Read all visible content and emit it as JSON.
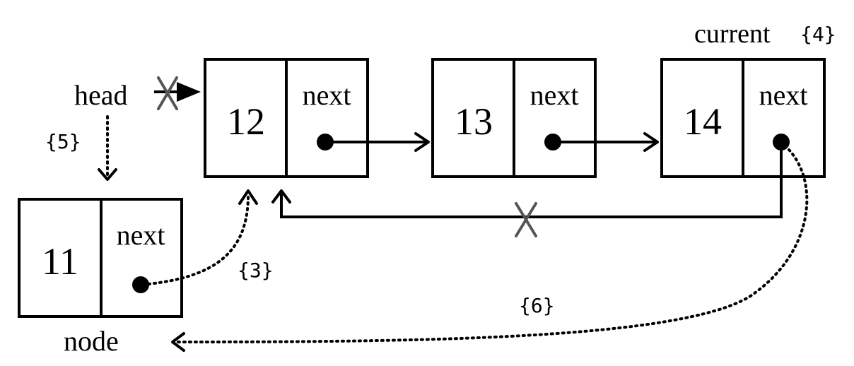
{
  "nodes": {
    "n12": {
      "value": "12",
      "next_label": "next"
    },
    "n13": {
      "value": "13",
      "next_label": "next"
    },
    "n14": {
      "value": "14",
      "next_label": "next"
    },
    "n11": {
      "value": "11",
      "next_label": "next"
    }
  },
  "labels": {
    "head": "head",
    "current": "current",
    "node": "node"
  },
  "steps": {
    "s3": "{3}",
    "s4": "{4}",
    "s5": "{5}",
    "s6": "{6}"
  }
}
